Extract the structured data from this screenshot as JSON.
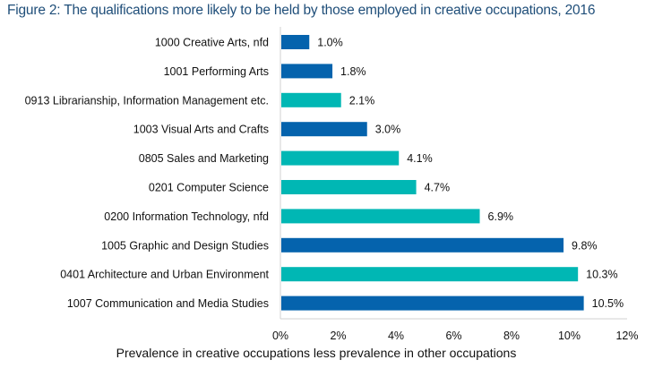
{
  "chart_data": {
    "type": "bar",
    "orientation": "horizontal",
    "title": "Figure 2: The qualifications more likely to be held by those employed in creative occupations, 2016",
    "xlabel": "Prevalence in creative occupations less prevalence in other occupations",
    "ylabel": "",
    "xlim": [
      0,
      12
    ],
    "xticks": [
      "0%",
      "2%",
      "4%",
      "6%",
      "8%",
      "10%",
      "12%"
    ],
    "grid": false,
    "legend": null,
    "categories": [
      "1000 Creative Arts, nfd",
      "1001 Performing Arts",
      "0913 Librarianship, Information Management etc.",
      "1003 Visual Arts and Crafts",
      "0805 Sales and Marketing",
      "0201 Computer Science",
      "0200 Information Technology, nfd",
      "1005 Graphic and Design Studies",
      "0401 Architecture and Urban Environment",
      "1007 Communication and Media Studies"
    ],
    "values": [
      1.0,
      1.8,
      2.1,
      3.0,
      4.1,
      4.7,
      6.9,
      9.8,
      10.3,
      10.5
    ],
    "data_labels": [
      "1.0%",
      "1.8%",
      "2.1%",
      "3.0%",
      "4.1%",
      "4.7%",
      "6.9%",
      "9.8%",
      "10.3%",
      "10.5%"
    ],
    "bar_groups": [
      "creative",
      "creative",
      "other",
      "creative",
      "other",
      "other",
      "other",
      "creative",
      "other",
      "creative"
    ],
    "colors": {
      "creative": "#0563ad",
      "other": "#00b7b4",
      "axis": "#d0d0d0",
      "title": "#1f4e79"
    }
  }
}
